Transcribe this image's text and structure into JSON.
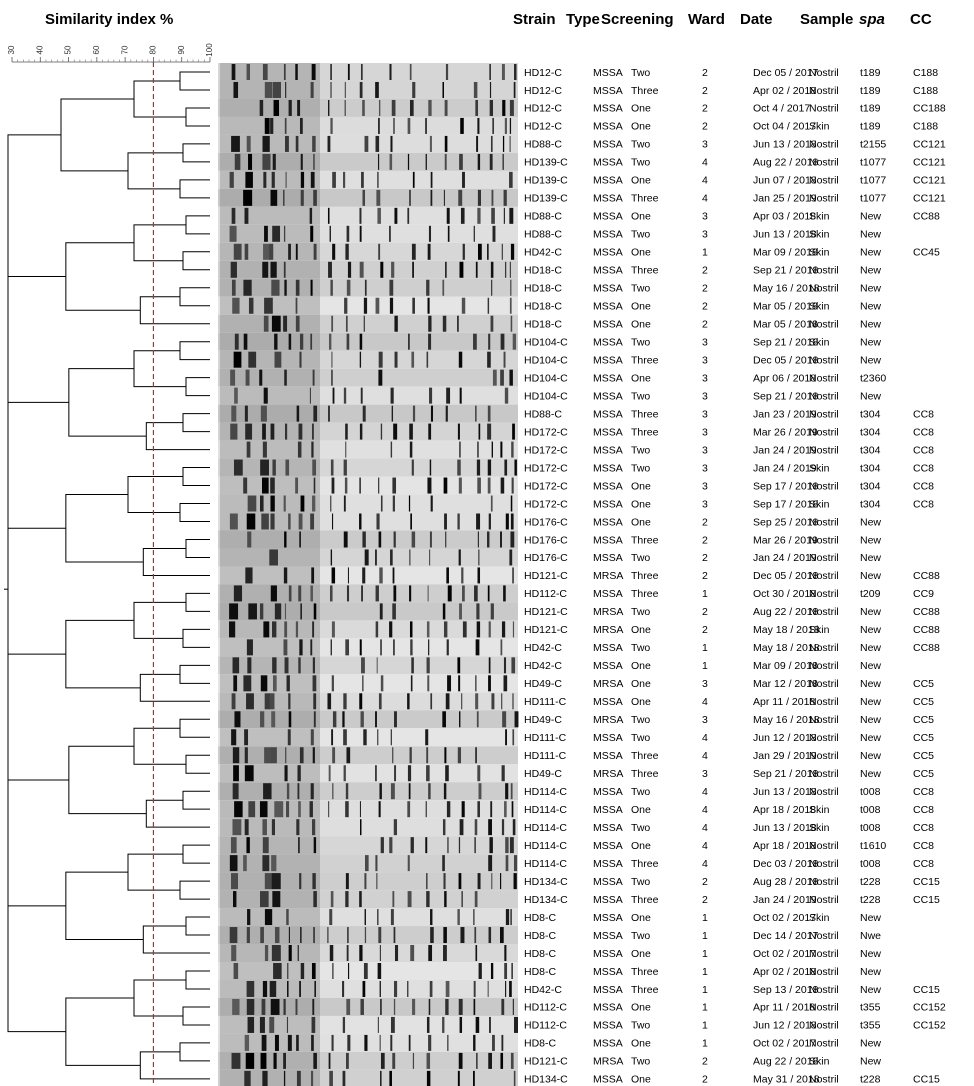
{
  "scale": {
    "title": "Similarity index %",
    "ticks": [
      30,
      40,
      50,
      60,
      70,
      80,
      90,
      100
    ],
    "cutoff": 80
  },
  "table": {
    "columns": [
      "Strain",
      "Type",
      "Screening",
      "Ward",
      "Date",
      "Sample",
      "spa",
      "CC"
    ],
    "rows": [
      [
        "HD12-C",
        "MSSA",
        "Two",
        2,
        "Dec 05 / 2017",
        "Nostril",
        "t189",
        "C188"
      ],
      [
        "HD12-C",
        "MSSA",
        "Three",
        2,
        "Apr 02 / 2018",
        "Nostril",
        "t189",
        "C188"
      ],
      [
        "HD12-C",
        "MSSA",
        "One",
        2,
        "Oct 4 / 2017",
        "Nostril",
        "t189",
        "CC188"
      ],
      [
        "HD12-C",
        "MSSA",
        "One",
        2,
        "Oct 04 / 2017",
        "Skin",
        "t189",
        "C188"
      ],
      [
        "HD88-C",
        "MSSA",
        "Two",
        3,
        "Jun 13 / 2018",
        "Nostril",
        "t2155",
        "CC121"
      ],
      [
        "HD139-C",
        "MSSA",
        "Two",
        4,
        "Aug 22 / 2018",
        "Nostril",
        "t1077",
        "CC121"
      ],
      [
        "HD139-C",
        "MSSA",
        "One",
        4,
        "Jun 07 / 2018",
        "Nostril",
        "t1077",
        "CC121"
      ],
      [
        "HD139-C",
        "MSSA",
        "Three",
        4,
        "Jan 25 / 2019",
        "Nostril",
        "t1077",
        "CC121"
      ],
      [
        "HD88-C",
        "MSSA",
        "One",
        3,
        "Apr 03 / 2018",
        "Skin",
        "New",
        "CC88"
      ],
      [
        "HD88-C",
        "MSSA",
        "Two",
        3,
        "Jun 13 / 2018",
        "Skin",
        "New"
      ],
      [
        "HD42-C",
        "MSSA",
        "One",
        1,
        "Mar 09 / 2018",
        "Skin",
        "New",
        "CC45"
      ],
      [
        "HD18-C",
        "MSSA",
        "Three",
        2,
        "Sep 21 / 2018",
        "Nostril",
        "New"
      ],
      [
        "HD18-C",
        "MSSA",
        "Two",
        2,
        "May 16 / 2018",
        "Nostril",
        "New"
      ],
      [
        "HD18-C",
        "MSSA",
        "One",
        2,
        "Mar 05 / 2018",
        "Skin",
        "New"
      ],
      [
        "HD18-C",
        "MSSA",
        "One",
        2,
        "Mar 05 / 2018",
        "Nostril",
        "New"
      ],
      [
        "HD104-C",
        "MSSA",
        "Two",
        3,
        "Sep 21 / 2018",
        "Skin",
        "New"
      ],
      [
        "HD104-C",
        "MSSA",
        "Three",
        3,
        "Dec 05 / 2018",
        "Nostril",
        "New"
      ],
      [
        "HD104-C",
        "MSSA",
        "One",
        3,
        "Apr 06 / 2018",
        "Nostril",
        "t2360"
      ],
      [
        "HD104-C",
        "MSSA",
        "Two",
        3,
        "Sep 21 / 2018",
        "Nostril",
        "New"
      ],
      [
        "HD88-C",
        "MSSA",
        "Three",
        3,
        "Jan 23 / 2019",
        "Nostril",
        "t304",
        "CC8"
      ],
      [
        "HD172-C",
        "MSSA",
        "Three",
        3,
        "Mar 26 / 2019",
        "Nostril",
        "t304",
        "CC8"
      ],
      [
        "HD172-C",
        "MSSA",
        "Two",
        3,
        "Jan 24 / 2019",
        "Nostril",
        "t304",
        "CC8"
      ],
      [
        "HD172-C",
        "MSSA",
        "Two",
        3,
        "Jan 24 / 2019",
        "Skin",
        "t304",
        "CC8"
      ],
      [
        "HD172-C",
        "MSSA",
        "One",
        3,
        "Sep 17 / 2018",
        "Nostril",
        "t304",
        "CC8"
      ],
      [
        "HD172-C",
        "MSSA",
        "One",
        3,
        "Sep 17 / 2018",
        "Skin",
        "t304",
        "CC8"
      ],
      [
        "HD176-C",
        "MSSA",
        "One",
        2,
        "Sep 25 / 2018",
        "Nostril",
        "New"
      ],
      [
        "HD176-C",
        "MSSA",
        "Three",
        2,
        "Mar 26 / 2019",
        "Nostril",
        "New"
      ],
      [
        "HD176-C",
        "MSSA",
        "Two",
        2,
        "Jan 24 / 2019",
        "Nostril",
        "New"
      ],
      [
        "HD121-C",
        "MRSA",
        "Three",
        2,
        "Dec 05 / 2018",
        "Nostril",
        "New",
        "CC88"
      ],
      [
        "HD112-C",
        "MSSA",
        "Three",
        1,
        "Oct 30 / 2018",
        "Nostril",
        "t209",
        "CC9"
      ],
      [
        "HD121-C",
        "MRSA",
        "Two",
        2,
        "Aug 22 / 2018",
        "Nostril",
        "New",
        "CC88"
      ],
      [
        "HD121-C",
        "MRSA",
        "One",
        2,
        "May 18 / 2018",
        "Skin",
        "New",
        "CC88"
      ],
      [
        "HD42-C",
        "MSSA",
        "Two",
        1,
        "May 18 / 2018",
        "Nostril",
        "New",
        "CC88"
      ],
      [
        "HD42-C",
        "MSSA",
        "One",
        1,
        "Mar 09 / 2018",
        "Nostril",
        "New"
      ],
      [
        "HD49-C",
        "MRSA",
        "One",
        3,
        "Mar 12 / 2018",
        "Nostril",
        "New",
        "CC5"
      ],
      [
        "HD111-C",
        "MSSA",
        "One",
        4,
        "Apr 11 / 2018",
        "Nostril",
        "New",
        "CC5"
      ],
      [
        "HD49-C",
        "MRSA",
        "Two",
        3,
        "May 16 / 2018",
        "Nostril",
        "New",
        "CC5"
      ],
      [
        "HD111-C",
        "MSSA",
        "Two",
        4,
        "Jun 12 / 2018",
        "Nostril",
        "New",
        "CC5"
      ],
      [
        "HD111-C",
        "MSSA",
        "Three",
        4,
        "Jan 29 / 2019",
        "Nostril",
        "New",
        "CC5"
      ],
      [
        "HD49-C",
        "MRSA",
        "Three",
        3,
        "Sep 21 / 2018",
        "Nostril",
        "New",
        "CC5"
      ],
      [
        "HD114-C",
        "MSSA",
        "Two",
        4,
        "Jun 13 / 2018",
        "Nostril",
        "t008",
        "CC8"
      ],
      [
        "HD114-C",
        "MSSA",
        "One",
        4,
        "Apr 18 / 2018",
        "Skin",
        "t008",
        "CC8"
      ],
      [
        "HD114-C",
        "MSSA",
        "Two",
        4,
        "Jun 13 / 2018",
        "Skin",
        "t008",
        "CC8"
      ],
      [
        "HD114-C",
        "MSSA",
        "One",
        4,
        "Apr 18 / 2018",
        "Nostril",
        "t1610",
        "CC8"
      ],
      [
        "HD114-C",
        "MSSA",
        "Three",
        4,
        "Dec 03 / 2018",
        "Nostril",
        "t008",
        "CC8"
      ],
      [
        "HD134-C",
        "MSSA",
        "Two",
        2,
        "Aug 28 / 2018",
        "Nostril",
        "t228",
        "CC15"
      ],
      [
        "HD134-C",
        "MSSA",
        "Three",
        2,
        "Jan 24 / 2019",
        "Nostril",
        "t228",
        "CC15"
      ],
      [
        "HD8-C",
        "MSSA",
        "One",
        1,
        "Oct 02 / 2017",
        "Skin",
        "New"
      ],
      [
        "HD8-C",
        "MSSA",
        "Two",
        1,
        "Dec 14 / 2017",
        "Nostril",
        "Nwe"
      ],
      [
        "HD8-C",
        "MSSA",
        "One",
        1,
        "Oct 02 / 2017",
        "Nostril",
        "New"
      ],
      [
        "HD8-C",
        "MSSA",
        "Three",
        1,
        "Apr 02 / 2018",
        "Nostril",
        "New"
      ],
      [
        "HD42-C",
        "MSSA",
        "Three",
        1,
        "Sep 13 / 2018",
        "Nostril",
        "New",
        "CC15"
      ],
      [
        "HD112-C",
        "MSSA",
        "One",
        1,
        "Apr 11 / 2018",
        "Nostril",
        "t355",
        "CC152"
      ],
      [
        "HD112-C",
        "MSSA",
        "Two",
        1,
        "Jun 12 / 2018",
        "Nostril",
        "t355",
        "CC152"
      ],
      [
        "HD8-C",
        "MSSA",
        "One",
        1,
        "Oct 02 / 2017",
        "Nostril",
        "New"
      ],
      [
        "HD121-C",
        "MRSA",
        "Two",
        2,
        "Aug 22 / 2018",
        "Skin",
        "New"
      ],
      [
        "HD134-C",
        "MSSA",
        "One",
        2,
        "May 31 / 2018",
        "Nostril",
        "t228",
        "CC15"
      ]
    ]
  }
}
